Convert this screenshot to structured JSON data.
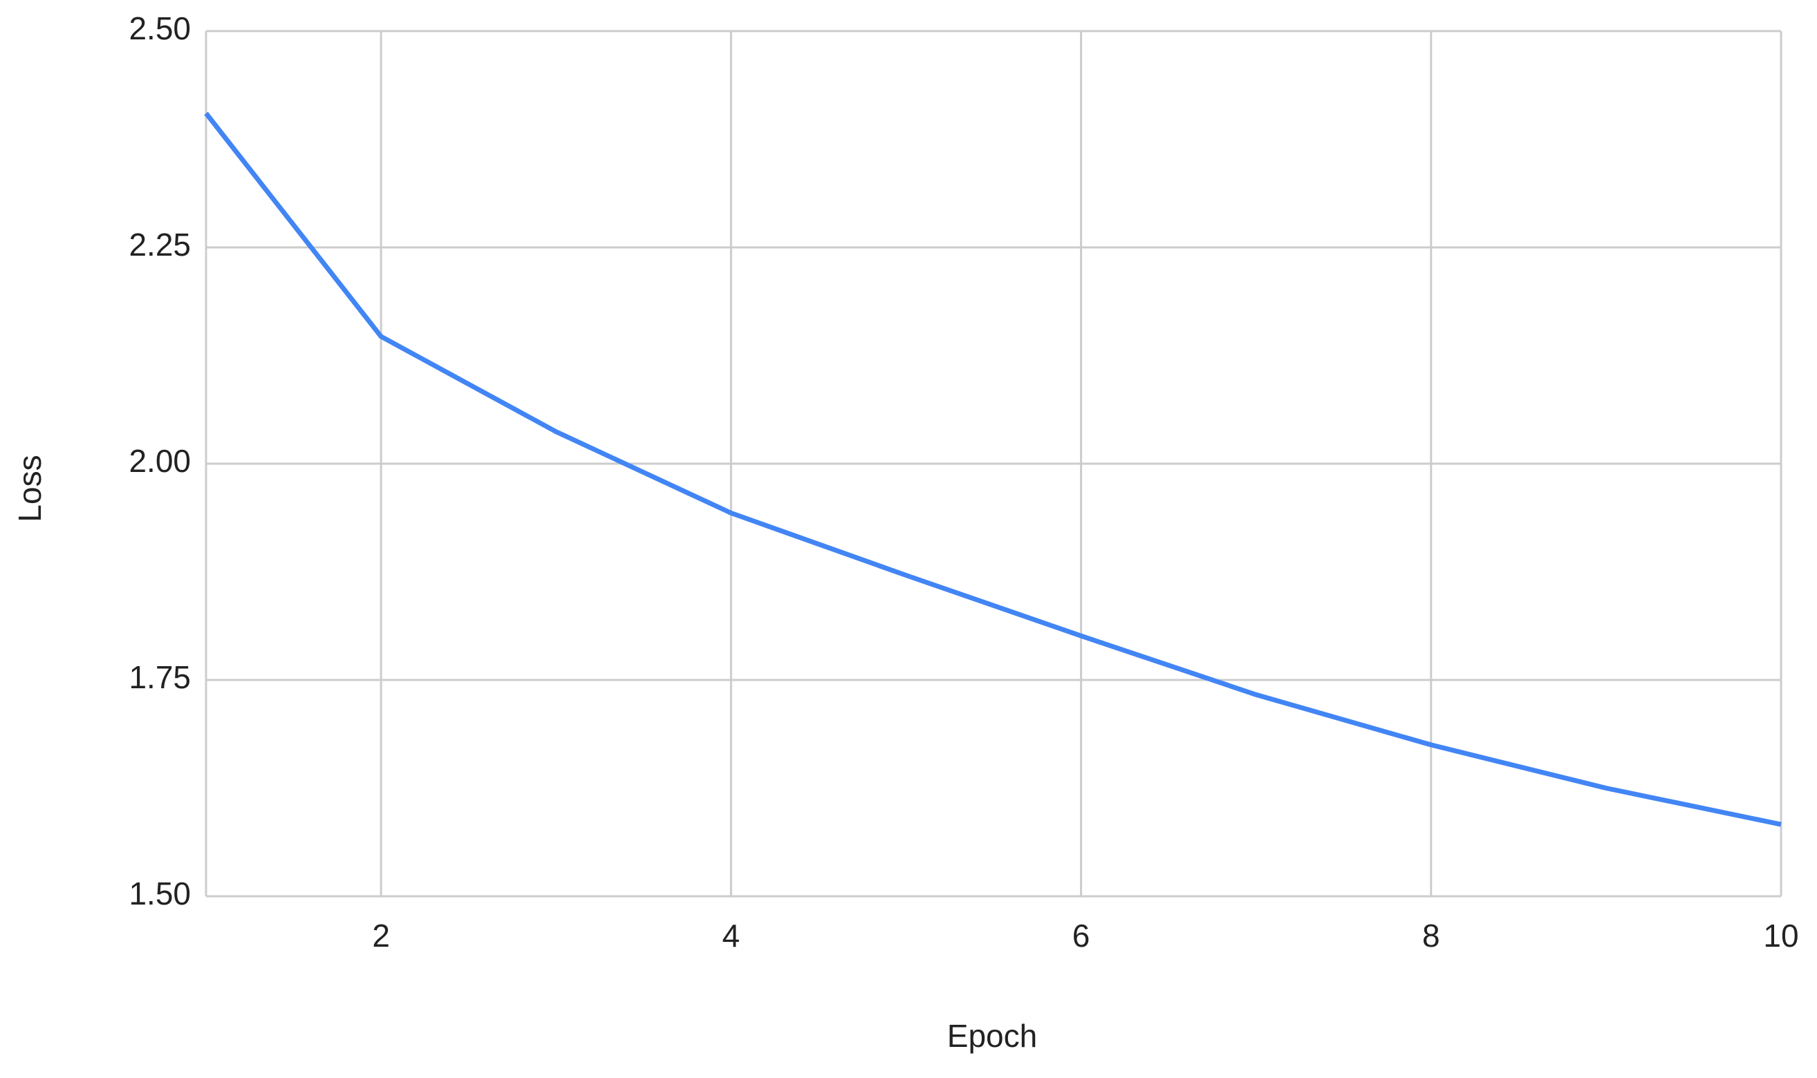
{
  "chart_data": {
    "type": "line",
    "x_label": "Epoch",
    "y_label": "Loss",
    "x": [
      1,
      2,
      3,
      4,
      5,
      6,
      7,
      8,
      9,
      10
    ],
    "series": [
      {
        "name": "Loss",
        "color": "#4285f4",
        "values": [
          2.405,
          2.147,
          2.037,
          1.943,
          1.871,
          1.801,
          1.733,
          1.675,
          1.625,
          1.583
        ]
      }
    ],
    "xlim": [
      1,
      10
    ],
    "xticks": [
      2,
      4,
      6,
      8,
      10
    ],
    "ylim": [
      1.5,
      2.5
    ],
    "yticks": [
      {
        "value": 1.5,
        "label": "1.50"
      },
      {
        "value": 1.75,
        "label": "1.75"
      },
      {
        "value": 2,
        "label": "2.00"
      },
      {
        "value": 2.25,
        "label": "2.25"
      },
      {
        "value": 2.5,
        "label": "2.50"
      }
    ],
    "grid": true
  }
}
